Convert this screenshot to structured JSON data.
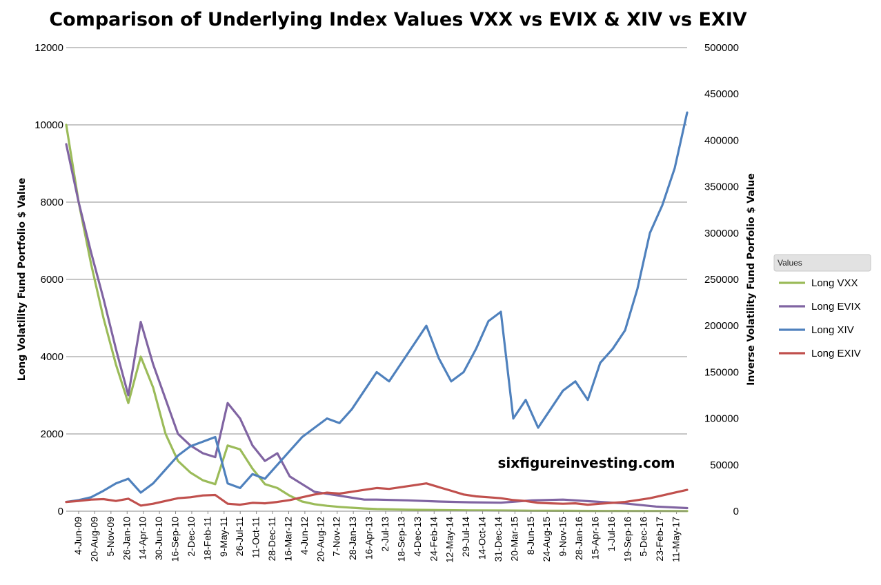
{
  "chart_data": {
    "type": "line",
    "title": "Comparison of Underlying Index Values VXX vs EVIX & XIV vs EXIV",
    "ylabel": "Long Volatility Fund Portfolio $ Value",
    "y2label": "Inverse Volatility Fund Porfolio $ Value",
    "ylim": [
      0,
      12000
    ],
    "y2lim": [
      0,
      500000
    ],
    "y_ticks": [
      "0",
      "2000",
      "4000",
      "6000",
      "8000",
      "10000",
      "12000"
    ],
    "y2_ticks": [
      "0",
      "50000",
      "100000",
      "150000",
      "200000",
      "250000",
      "300000",
      "350000",
      "400000",
      "450000",
      "500000"
    ],
    "x_tick_labels": [
      "4-Jun-09",
      "20-Aug-09",
      "5-Nov-09",
      "26-Jan-10",
      "14-Apr-10",
      "30-Jun-10",
      "16-Sep-10",
      "2-Dec-10",
      "18-Feb-11",
      "9-May-11",
      "26-Jul-11",
      "11-Oct-11",
      "28-Dec-11",
      "16-Mar-12",
      "4-Jun-12",
      "20-Aug-12",
      "7-Nov-12",
      "28-Jan-13",
      "16-Apr-13",
      "2-Jul-13",
      "18-Sep-13",
      "4-Dec-13",
      "24-Feb-14",
      "12-May-14",
      "29-Jul-14",
      "14-Oct-14",
      "31-Dec-14",
      "20-Mar-15",
      "8-Jun-15",
      "24-Aug-15",
      "9-Nov-15",
      "28-Jan-16",
      "15-Apr-16",
      "1-Jul-16",
      "19-Sep-16",
      "5-Dec-16",
      "23-Feb-17",
      "11-May-17"
    ],
    "grid": true,
    "legend": {
      "title": "Values",
      "position": "right"
    },
    "watermark": "sixfigureinvesting.com",
    "series": [
      {
        "name": "Long VXX",
        "axis": "left",
        "color": "#9bbb59",
        "x": [
          0,
          0.02,
          0.04,
          0.06,
          0.08,
          0.1,
          0.12,
          0.14,
          0.16,
          0.18,
          0.2,
          0.22,
          0.24,
          0.26,
          0.28,
          0.3,
          0.32,
          0.34,
          0.36,
          0.38,
          0.4,
          0.42,
          0.44,
          0.46,
          0.48,
          0.5,
          0.55,
          0.6,
          0.65,
          0.7,
          0.75,
          0.8,
          0.85,
          0.9,
          0.95,
          1
        ],
        "values": [
          10000,
          8000,
          6400,
          5000,
          3800,
          2800,
          4000,
          3200,
          2000,
          1300,
          1000,
          800,
          700,
          1700,
          1600,
          1100,
          700,
          600,
          400,
          250,
          180,
          140,
          110,
          90,
          70,
          55,
          40,
          30,
          22,
          17,
          12,
          10,
          8,
          6,
          5,
          4
        ]
      },
      {
        "name": "Long EVIX",
        "axis": "left",
        "color": "#8064a2",
        "x": [
          0,
          0.02,
          0.04,
          0.06,
          0.08,
          0.1,
          0.12,
          0.14,
          0.16,
          0.18,
          0.2,
          0.22,
          0.24,
          0.26,
          0.28,
          0.3,
          0.32,
          0.34,
          0.36,
          0.38,
          0.4,
          0.42,
          0.44,
          0.46,
          0.48,
          0.5,
          0.55,
          0.6,
          0.65,
          0.7,
          0.75,
          0.8,
          0.85,
          0.9,
          0.95,
          1
        ],
        "values": [
          9500,
          8000,
          6700,
          5500,
          4200,
          3000,
          4900,
          3800,
          2900,
          2000,
          1700,
          1500,
          1400,
          2800,
          2400,
          1700,
          1300,
          1500,
          900,
          700,
          500,
          450,
          400,
          350,
          300,
          300,
          280,
          250,
          230,
          220,
          280,
          300,
          250,
          200,
          120,
          80
        ]
      },
      {
        "name": "Long XIV",
        "axis": "right",
        "color": "#4f81bd",
        "x": [
          0,
          0.02,
          0.04,
          0.06,
          0.08,
          0.1,
          0.12,
          0.14,
          0.16,
          0.18,
          0.2,
          0.22,
          0.24,
          0.26,
          0.28,
          0.3,
          0.32,
          0.34,
          0.36,
          0.38,
          0.4,
          0.42,
          0.44,
          0.46,
          0.48,
          0.5,
          0.52,
          0.54,
          0.56,
          0.58,
          0.6,
          0.62,
          0.64,
          0.66,
          0.68,
          0.7,
          0.72,
          0.74,
          0.76,
          0.78,
          0.8,
          0.82,
          0.84,
          0.86,
          0.88,
          0.9,
          0.92,
          0.94,
          0.96,
          0.98,
          1
        ],
        "values": [
          10000,
          12000,
          15000,
          22000,
          30000,
          35000,
          20000,
          30000,
          45000,
          60000,
          70000,
          75000,
          80000,
          30000,
          25000,
          40000,
          35000,
          50000,
          65000,
          80000,
          90000,
          100000,
          95000,
          110000,
          130000,
          150000,
          140000,
          160000,
          180000,
          200000,
          165000,
          140000,
          150000,
          175000,
          205000,
          215000,
          100000,
          120000,
          90000,
          110000,
          130000,
          140000,
          120000,
          160000,
          175000,
          195000,
          240000,
          300000,
          330000,
          370000,
          430000
        ]
      },
      {
        "name": "Long EXIV",
        "axis": "right",
        "color": "#c0504d",
        "x": [
          0,
          0.02,
          0.04,
          0.06,
          0.08,
          0.1,
          0.12,
          0.14,
          0.16,
          0.18,
          0.2,
          0.22,
          0.24,
          0.26,
          0.28,
          0.3,
          0.32,
          0.34,
          0.36,
          0.38,
          0.4,
          0.42,
          0.44,
          0.46,
          0.48,
          0.5,
          0.52,
          0.54,
          0.56,
          0.58,
          0.6,
          0.62,
          0.64,
          0.66,
          0.68,
          0.7,
          0.72,
          0.74,
          0.76,
          0.78,
          0.8,
          0.82,
          0.84,
          0.86,
          0.88,
          0.9,
          0.92,
          0.94,
          0.96,
          0.98,
          1
        ],
        "values": [
          10000,
          11000,
          12500,
          13000,
          11000,
          13500,
          6000,
          8000,
          11000,
          14000,
          15000,
          17000,
          17500,
          8000,
          7000,
          9000,
          8500,
          10000,
          12000,
          15000,
          18000,
          20000,
          19000,
          21000,
          23000,
          25000,
          24000,
          26000,
          28000,
          30000,
          26000,
          22000,
          18000,
          16000,
          15000,
          14000,
          12000,
          11000,
          9000,
          8500,
          8000,
          8500,
          7000,
          8000,
          9000,
          10000,
          12000,
          14000,
          17000,
          20000,
          23000
        ]
      }
    ]
  }
}
